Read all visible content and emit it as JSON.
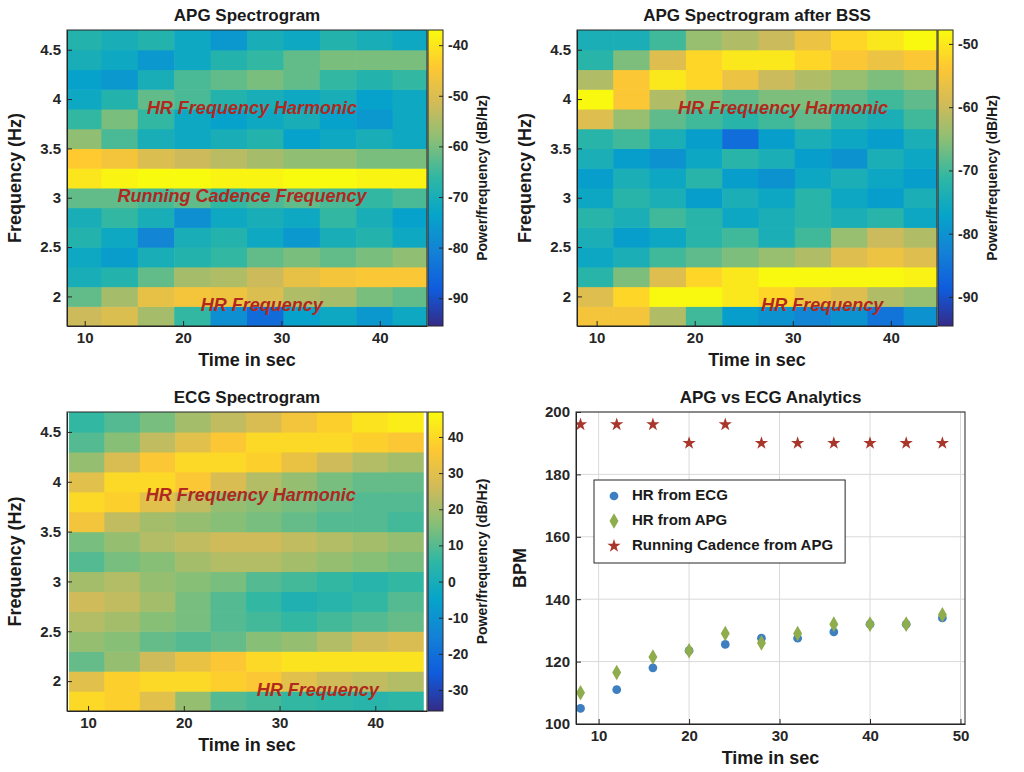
{
  "chart_data": [
    {
      "type": "heatmap",
      "title": "APG Spectrogram",
      "xlabel": "Time in sec",
      "ylabel": "Frequency (Hz)",
      "x": [
        9.85,
        13.55,
        17.25,
        20.95,
        24.65,
        28.35,
        32.05,
        35.75,
        39.45,
        43.15
      ],
      "y": [
        1.8,
        2,
        2.2,
        2.4,
        2.6,
        2.8,
        3,
        3.2,
        3.4,
        3.6,
        3.8,
        4,
        4.2,
        4.4,
        4.6
      ],
      "cells": [
        [
          -52,
          -50,
          -56,
          -66,
          -78,
          -85,
          -74,
          -72,
          -76,
          -72
        ],
        [
          -62,
          -56,
          -48,
          -46,
          -47,
          -50,
          -55,
          -56,
          -60,
          -62
        ],
        [
          -70,
          -68,
          -62,
          -56,
          -55,
          -52,
          -48,
          -46,
          -45,
          -45
        ],
        [
          -72,
          -75,
          -70,
          -68,
          -66,
          -62,
          -60,
          -62,
          -60,
          -58
        ],
        [
          -68,
          -72,
          -80,
          -70,
          -68,
          -72,
          -76,
          -70,
          -68,
          -72
        ],
        [
          -70,
          -66,
          -70,
          -78,
          -72,
          -70,
          -72,
          -66,
          -70,
          -74
        ],
        [
          -62,
          -62,
          -64,
          -62,
          -66,
          -64,
          -62,
          -64,
          -66,
          -64
        ],
        [
          -40,
          -38,
          -37,
          -37,
          -38,
          -38,
          -37,
          -37,
          -38,
          -38
        ],
        [
          -44,
          -46,
          -50,
          -52,
          -54,
          -56,
          -58,
          -58,
          -60,
          -60
        ],
        [
          -58,
          -64,
          -70,
          -72,
          -70,
          -68,
          -74,
          -72,
          -70,
          -72
        ],
        [
          -66,
          -60,
          -66,
          -72,
          -74,
          -72,
          -70,
          -74,
          -76,
          -72
        ],
        [
          -72,
          -68,
          -62,
          -64,
          -68,
          -70,
          -72,
          -70,
          -74,
          -72
        ],
        [
          -74,
          -76,
          -70,
          -64,
          -62,
          -60,
          -62,
          -66,
          -68,
          -66
        ],
        [
          -70,
          -72,
          -76,
          -72,
          -68,
          -66,
          -62,
          -60,
          -60,
          -60
        ],
        [
          -68,
          -70,
          -68,
          -72,
          -76,
          -70,
          -72,
          -68,
          -70,
          -72
        ]
      ],
      "xlim": [
        8.2,
        44.8
      ],
      "xticks": [
        10,
        20,
        30,
        40
      ],
      "ylim": [
        1.7,
        4.7
      ],
      "yticks": [
        2,
        2.5,
        3,
        3.5,
        4,
        4.5
      ],
      "colorbar_label": "Power/frequency (dB/Hz)",
      "colorbar_range": [
        -95.5,
        -37
      ],
      "colorbar_ticks": [
        -90,
        -80,
        -70,
        -60,
        -50,
        -40
      ],
      "annotations": [
        {
          "text": "HR Frequency Harmonic",
          "x": 27,
          "y": 3.9
        },
        {
          "text": "Running Cadence Frequency",
          "x": 26,
          "y": 3
        },
        {
          "text": "HR Frequency",
          "x": 28,
          "y": 1.9
        }
      ]
    },
    {
      "type": "heatmap",
      "title": "APG Spectrogram after BSS",
      "xlabel": "Time in sec",
      "ylabel": "Frequency (Hz)",
      "x": [
        9.85,
        13.55,
        17.25,
        20.95,
        24.65,
        28.35,
        32.05,
        35.75,
        39.45,
        43.15
      ],
      "y": [
        1.8,
        2,
        2.2,
        2.4,
        2.6,
        2.8,
        3,
        3.2,
        3.4,
        3.6,
        3.8,
        4,
        4.2,
        4.4,
        4.6
      ],
      "cells": [
        [
          -55,
          -55,
          -62,
          -70,
          -78,
          -80,
          -82,
          -80,
          -85,
          -80
        ],
        [
          -58,
          -52,
          -48,
          -48,
          -50,
          -52,
          -56,
          -58,
          -62,
          -64
        ],
        [
          -72,
          -66,
          -58,
          -52,
          -50,
          -48,
          -48,
          -48,
          -48,
          -49
        ],
        [
          -76,
          -74,
          -70,
          -68,
          -66,
          -64,
          -62,
          -58,
          -56,
          -58
        ],
        [
          -74,
          -78,
          -76,
          -72,
          -70,
          -74,
          -70,
          -64,
          -60,
          -62
        ],
        [
          -72,
          -74,
          -70,
          -72,
          -76,
          -74,
          -72,
          -74,
          -72,
          -76
        ],
        [
          -76,
          -72,
          -74,
          -78,
          -74,
          -76,
          -72,
          -76,
          -78,
          -74
        ],
        [
          -78,
          -74,
          -76,
          -72,
          -78,
          -80,
          -76,
          -74,
          -76,
          -78
        ],
        [
          -74,
          -78,
          -80,
          -76,
          -72,
          -74,
          -78,
          -80,
          -74,
          -76
        ],
        [
          -72,
          -70,
          -74,
          -78,
          -86,
          -78,
          -74,
          -76,
          -78,
          -74
        ],
        [
          -58,
          -64,
          -68,
          -70,
          -72,
          -70,
          -68,
          -72,
          -74,
          -70
        ],
        [
          -48,
          -54,
          -62,
          -66,
          -68,
          -66,
          -66,
          -68,
          -70,
          -68
        ],
        [
          -62,
          -54,
          -50,
          -52,
          -56,
          -60,
          -62,
          -64,
          -66,
          -64
        ],
        [
          -72,
          -66,
          -58,
          -52,
          -50,
          -50,
          -52,
          -54,
          -56,
          -54
        ],
        [
          -74,
          -74,
          -70,
          -64,
          -62,
          -60,
          -56,
          -52,
          -50,
          -48
        ]
      ],
      "xlim": [
        8,
        44.7
      ],
      "xticks": [
        10,
        20,
        30,
        40
      ],
      "ylim": [
        1.7,
        4.7
      ],
      "yticks": [
        2,
        2.5,
        3,
        3.5,
        4,
        4.5
      ],
      "colorbar_label": "Power/frequency (dB/Hz)",
      "colorbar_range": [
        -94.6,
        -47.8
      ],
      "colorbar_ticks": [
        -90,
        -80,
        -70,
        -60,
        -50
      ],
      "annotations": [
        {
          "text": "HR Frequency Harmonic",
          "x": 29,
          "y": 3.9
        },
        {
          "text": "HR Frequency",
          "x": 33,
          "y": 1.9
        }
      ]
    },
    {
      "type": "heatmap",
      "title": "ECG Spectrogram",
      "xlabel": "Time in sec",
      "ylabel": "Frequency (Hz)",
      "x": [
        9.85,
        13.55,
        17.25,
        20.95,
        24.65,
        28.35,
        32.05,
        35.75,
        39.45,
        43.15
      ],
      "y": [
        1.8,
        2,
        2.2,
        2.4,
        2.6,
        2.8,
        3,
        3.2,
        3.4,
        3.6,
        3.8,
        4,
        4.2,
        4.4,
        4.6
      ],
      "cells": [
        [
          40,
          38,
          30,
          18,
          10,
          8,
          6,
          5,
          4,
          5
        ],
        [
          30,
          38,
          40,
          40,
          38,
          36,
          30,
          26,
          24,
          22
        ],
        [
          12,
          18,
          26,
          32,
          36,
          40,
          42,
          42,
          42,
          42
        ],
        [
          18,
          16,
          12,
          10,
          12,
          16,
          18,
          22,
          26,
          28
        ],
        [
          22,
          20,
          16,
          14,
          10,
          8,
          6,
          8,
          10,
          12
        ],
        [
          26,
          24,
          20,
          14,
          10,
          6,
          2,
          4,
          6,
          10
        ],
        [
          20,
          22,
          18,
          16,
          14,
          10,
          8,
          6,
          4,
          6
        ],
        [
          10,
          14,
          16,
          20,
          22,
          22,
          20,
          18,
          16,
          14
        ],
        [
          14,
          18,
          22,
          24,
          26,
          26,
          24,
          22,
          20,
          18
        ],
        [
          34,
          24,
          20,
          18,
          16,
          14,
          12,
          10,
          10,
          8
        ],
        [
          40,
          38,
          30,
          24,
          18,
          16,
          14,
          12,
          10,
          10
        ],
        [
          30,
          40,
          40,
          36,
          28,
          22,
          18,
          14,
          12,
          12
        ],
        [
          18,
          28,
          36,
          40,
          40,
          38,
          32,
          26,
          22,
          20
        ],
        [
          10,
          16,
          24,
          30,
          36,
          40,
          40,
          40,
          38,
          36
        ],
        [
          6,
          10,
          14,
          20,
          24,
          28,
          34,
          38,
          42,
          44
        ]
      ],
      "xlim": [
        7.8,
        45.4
      ],
      "xticks": [
        10,
        20,
        30,
        40
      ],
      "ylim": [
        1.7,
        4.7
      ],
      "yticks": [
        2,
        2.5,
        3,
        3.5,
        4,
        4.5
      ],
      "colorbar_label": "Power/frequency (dB/Hz)",
      "colorbar_range": [
        -35.8,
        46.9
      ],
      "colorbar_ticks": [
        -30,
        -20,
        -10,
        0,
        10,
        20,
        30,
        40
      ],
      "annotations": [
        {
          "text": "HR Frequency Harmonic",
          "x": 27,
          "y": 3.85
        },
        {
          "text": "HR Frequency",
          "x": 34,
          "y": 1.9
        }
      ]
    },
    {
      "type": "scatter",
      "title": "APG vs ECG Analytics",
      "xlabel": "Time in sec",
      "ylabel": "BPM",
      "x": [
        8,
        12,
        16,
        20,
        24,
        28,
        32,
        36,
        40,
        44,
        48
      ],
      "series": [
        {
          "name": "HR from ECG",
          "color": "#3d7fc1",
          "marker": "circle",
          "values": [
            105,
            111,
            118,
            123.5,
            125.5,
            127.5,
            127.5,
            129.5,
            132,
            132,
            134
          ]
        },
        {
          "name": "HR from APG",
          "color": "#8fad4c",
          "marker": "diamond",
          "values": [
            110,
            116.5,
            121.5,
            123.5,
            129,
            126,
            129,
            132,
            132,
            132,
            135
          ]
        },
        {
          "name": "Running Cadence from APG",
          "color": "#a8362a",
          "marker": "star",
          "values": [
            196,
            196,
            196,
            190,
            196,
            190,
            190,
            190,
            190,
            190,
            190
          ]
        }
      ],
      "xlim": [
        7.5,
        50.5
      ],
      "xticks": [
        10,
        20,
        30,
        40,
        50
      ],
      "ylim": [
        100,
        200
      ],
      "yticks": [
        100,
        120,
        140,
        160,
        180,
        200
      ],
      "grid": true,
      "legend": "upper left"
    }
  ]
}
